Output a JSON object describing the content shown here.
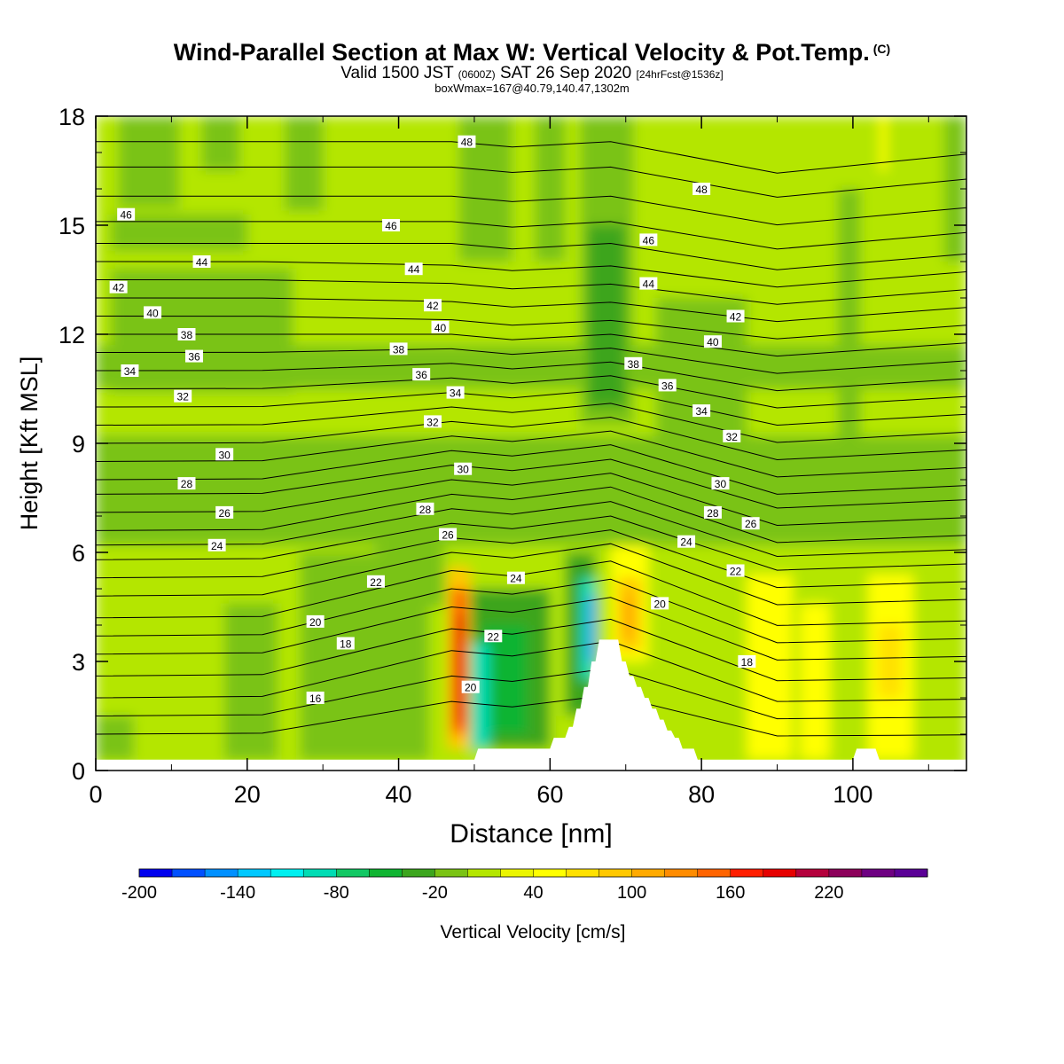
{
  "title": {
    "main": "Wind-Parallel Section at Max W: Vertical Velocity & Pot.Temp.",
    "copyright": "(C)",
    "valid_prefix": "Valid 1500 JST",
    "valid_utc": "(0600Z)",
    "valid_date": "SAT 26 Sep 2020",
    "forecast": "[24hrFcst@1536z]",
    "box": "boxWmax=167@40.79,140.47,1302m"
  },
  "chart_data": {
    "type": "heatmap",
    "xlabel": "Distance [nm]",
    "ylabel": "Height [Kft MSL]",
    "xlim": [
      0,
      115
    ],
    "ylim": [
      0,
      18
    ],
    "x_ticks": [
      0,
      20,
      40,
      60,
      80,
      100
    ],
    "y_ticks": [
      0,
      3,
      6,
      9,
      12,
      15,
      18
    ],
    "colorbar": {
      "label": "Vertical Velocity [cm/s]",
      "min": -200,
      "max": 280,
      "step": 20,
      "tick_labels": [
        -200,
        -140,
        -80,
        -20,
        40,
        100,
        160,
        220
      ],
      "colors": [
        "#0000ee",
        "#0050ff",
        "#0090ff",
        "#00c8ff",
        "#00f0f0",
        "#00dcb4",
        "#12c864",
        "#10b432",
        "#3ca51e",
        "#7ac314",
        "#b4e600",
        "#ebf500",
        "#ffff00",
        "#ffe100",
        "#ffc800",
        "#ffaa00",
        "#ff8c00",
        "#ff6400",
        "#ff1e00",
        "#e60000",
        "#b4003c",
        "#8c005a",
        "#6e0082",
        "#5a0096"
      ]
    },
    "field_cells": [
      {
        "x": [
          0,
          115
        ],
        "y": [
          0,
          18
        ],
        "w": 0
      },
      {
        "x": [
          0,
          115
        ],
        "y": [
          6.2,
          9.2
        ],
        "w": -20
      },
      {
        "x": [
          0,
          115
        ],
        "y": [
          10.5,
          11.7
        ],
        "w": -10
      },
      {
        "x": [
          2,
          26
        ],
        "y": [
          10.4,
          13.8
        ],
        "w": -20
      },
      {
        "x": [
          2,
          20
        ],
        "y": [
          14.3,
          15.3
        ],
        "w": -20
      },
      {
        "x": [
          3,
          11
        ],
        "y": [
          15.5,
          18
        ],
        "w": -20
      },
      {
        "x": [
          14,
          19
        ],
        "y": [
          16.5,
          18
        ],
        "w": -20
      },
      {
        "x": [
          25,
          30
        ],
        "y": [
          15.4,
          18
        ],
        "w": -20
      },
      {
        "x": [
          48,
          55
        ],
        "y": [
          14,
          18
        ],
        "w": -20
      },
      {
        "x": [
          58,
          62
        ],
        "y": [
          14,
          18
        ],
        "w": -20
      },
      {
        "x": [
          64,
          71
        ],
        "y": [
          9.5,
          18
        ],
        "w": -20
      },
      {
        "x": [
          65,
          70
        ],
        "y": [
          10,
          15
        ],
        "w": -40
      },
      {
        "x": [
          74,
          80
        ],
        "y": [
          9,
          13
        ],
        "w": -20
      },
      {
        "x": [
          80,
          86
        ],
        "y": [
          9,
          13
        ],
        "w": -20
      },
      {
        "x": [
          98,
          101
        ],
        "y": [
          9,
          16
        ],
        "w": -20
      },
      {
        "x": [
          112,
          115
        ],
        "y": [
          14,
          18
        ],
        "w": -20
      },
      {
        "x": [
          27,
          44
        ],
        "y": [
          0.3,
          6
        ],
        "w": -20
      },
      {
        "x": [
          17,
          24
        ],
        "y": [
          0.3,
          4.6
        ],
        "w": -20
      },
      {
        "x": [
          0,
          5
        ],
        "y": [
          0.3,
          1.5
        ],
        "w": -20
      },
      {
        "x": [
          37,
          46
        ],
        "y": [
          4.5,
          6.2
        ],
        "w": -20
      },
      {
        "x": [
          86,
          92
        ],
        "y": [
          0.3,
          5.4
        ],
        "w": 40
      },
      {
        "x": [
          93,
          97
        ],
        "y": [
          0.3,
          4.6
        ],
        "w": 40
      },
      {
        "x": [
          102,
          108
        ],
        "y": [
          0.3,
          5.4
        ],
        "w": 40
      },
      {
        "x": [
          103.3,
          106.5
        ],
        "y": [
          2,
          4
        ],
        "w": 60
      },
      {
        "x": [
          103.5,
          104.5
        ],
        "y": [
          16.5,
          18
        ],
        "w": 40
      },
      {
        "x": [
          68,
          73
        ],
        "y": [
          3,
          6.2
        ],
        "w": 40
      },
      {
        "x": [
          69,
          72
        ],
        "y": [
          3.3,
          5.3
        ],
        "w": 80
      },
      {
        "x": [
          69.5,
          71
        ],
        "y": [
          3.7,
          4.8
        ],
        "w": 100
      },
      {
        "x": [
          46.5,
          49.5
        ],
        "y": [
          0.6,
          5.6
        ],
        "w": 80
      },
      {
        "x": [
          47,
          49
        ],
        "y": [
          1,
          5
        ],
        "w": 140
      },
      {
        "x": [
          47.5,
          48.8
        ],
        "y": [
          1.3,
          4.3
        ],
        "w": 180
      },
      {
        "x": [
          49.5,
          60
        ],
        "y": [
          0.6,
          5
        ],
        "w": -40
      },
      {
        "x": [
          51,
          57
        ],
        "y": [
          1,
          4
        ],
        "w": -60
      },
      {
        "x": [
          49.5,
          52
        ],
        "y": [
          0.6,
          3.5
        ],
        "w": -100
      },
      {
        "x": [
          62,
          66
        ],
        "y": [
          1.5,
          6
        ],
        "w": -40
      },
      {
        "x": [
          64,
          66
        ],
        "y": [
          2.5,
          5.3
        ],
        "w": -100
      },
      {
        "x": [
          65,
          66
        ],
        "y": [
          3,
          4.8
        ],
        "w": -160
      }
    ],
    "terrain_top_kft": [
      [
        0,
        0.3
      ],
      [
        50,
        0.3
      ],
      [
        50.5,
        0.6
      ],
      [
        60,
        0.6
      ],
      [
        60.5,
        0.9
      ],
      [
        62,
        0.9
      ],
      [
        62.5,
        1.2
      ],
      [
        63,
        1.2
      ],
      [
        63.5,
        1.7
      ],
      [
        64,
        1.7
      ],
      [
        64.5,
        2.3
      ],
      [
        65,
        2.3
      ],
      [
        65.5,
        3
      ],
      [
        66,
        3
      ],
      [
        66.5,
        3.6
      ],
      [
        69,
        3.6
      ],
      [
        69.5,
        3
      ],
      [
        70,
        3
      ],
      [
        70.5,
        2.6
      ],
      [
        71,
        2.6
      ],
      [
        71.5,
        2.3
      ],
      [
        72,
        2.3
      ],
      [
        72.5,
        2
      ],
      [
        73,
        2
      ],
      [
        73.5,
        1.7
      ],
      [
        74,
        1.7
      ],
      [
        74.5,
        1.4
      ],
      [
        75,
        1.4
      ],
      [
        75.5,
        1.1
      ],
      [
        76,
        1.1
      ],
      [
        76.5,
        0.9
      ],
      [
        77,
        0.9
      ],
      [
        77.5,
        0.6
      ],
      [
        79,
        0.6
      ],
      [
        79.5,
        0.3
      ],
      [
        100,
        0.3
      ],
      [
        100.5,
        0.6
      ],
      [
        103,
        0.6
      ],
      [
        103.5,
        0.3
      ],
      [
        115,
        0.3
      ]
    ],
    "theta_contours": [
      {
        "y_far": 1.0,
        "y_mid": 1.9
      },
      {
        "y_far": 1.5,
        "y_mid": 2.6
      },
      {
        "y_far": 2.0,
        "y_mid": 3.3
      },
      {
        "y_far": 2.6,
        "y_mid": 3.9
      },
      {
        "y_far": 3.2,
        "y_mid": 4.5
      },
      {
        "y_far": 3.7,
        "y_mid": 5.0
      },
      {
        "y_far": 4.2,
        "y_mid": 5.5
      },
      {
        "y_far": 4.8,
        "y_mid": 6.0
      },
      {
        "y_far": 5.3,
        "y_mid": 6.4
      },
      {
        "y_far": 5.8,
        "y_mid": 6.8
      },
      {
        "y_far": 6.2,
        "y_mid": 7.2
      },
      {
        "y_far": 6.6,
        "y_mid": 7.6
      },
      {
        "y_far": 7.1,
        "y_mid": 8.0
      },
      {
        "y_far": 7.6,
        "y_mid": 8.4
      },
      {
        "y_far": 8.0,
        "y_mid": 8.8
      },
      {
        "y_far": 8.5,
        "y_mid": 9.2
      },
      {
        "y_far": 9.0,
        "y_mid": 9.6
      },
      {
        "y_far": 9.5,
        "y_mid": 10.0
      },
      {
        "y_far": 10.0,
        "y_mid": 10.4
      },
      {
        "y_far": 10.5,
        "y_mid": 10.8
      },
      {
        "y_far": 11.0,
        "y_mid": 11.2
      },
      {
        "y_far": 11.5,
        "y_mid": 11.6
      },
      {
        "y_far": 12.0,
        "y_mid": 12.0
      },
      {
        "y_far": 12.5,
        "y_mid": 12.4
      },
      {
        "y_far": 13.0,
        "y_mid": 12.9
      },
      {
        "y_far": 13.5,
        "y_mid": 13.4
      },
      {
        "y_far": 14.0,
        "y_mid": 13.9
      },
      {
        "y_far": 14.5,
        "y_mid": 14.5
      },
      {
        "y_far": 15.1,
        "y_mid": 15.1
      },
      {
        "y_far": 15.8,
        "y_mid": 15.8
      },
      {
        "y_far": 16.6,
        "y_mid": 16.6
      },
      {
        "y_far": 17.3,
        "y_mid": 17.3
      }
    ],
    "contour_labels": [
      {
        "text": "16",
        "x": 29,
        "y": 2.0
      },
      {
        "text": "18",
        "x": 33,
        "y": 3.5
      },
      {
        "text": "18",
        "x": 86,
        "y": 3.0
      },
      {
        "text": "20",
        "x": 29,
        "y": 4.1
      },
      {
        "text": "20",
        "x": 49.5,
        "y": 2.3
      },
      {
        "text": "20",
        "x": 74.5,
        "y": 4.6
      },
      {
        "text": "22",
        "x": 37,
        "y": 5.2
      },
      {
        "text": "22",
        "x": 52.5,
        "y": 3.7
      },
      {
        "text": "22",
        "x": 84.5,
        "y": 5.5
      },
      {
        "text": "24",
        "x": 16,
        "y": 6.2
      },
      {
        "text": "24",
        "x": 55.5,
        "y": 5.3
      },
      {
        "text": "24",
        "x": 78,
        "y": 6.3
      },
      {
        "text": "26",
        "x": 17,
        "y": 7.1
      },
      {
        "text": "26",
        "x": 46.5,
        "y": 6.5
      },
      {
        "text": "26",
        "x": 86.5,
        "y": 6.8
      },
      {
        "text": "28",
        "x": 12,
        "y": 7.9
      },
      {
        "text": "28",
        "x": 43.5,
        "y": 7.2
      },
      {
        "text": "28",
        "x": 81.5,
        "y": 7.1
      },
      {
        "text": "30",
        "x": 17,
        "y": 8.7
      },
      {
        "text": "30",
        "x": 48.5,
        "y": 8.3
      },
      {
        "text": "30",
        "x": 82.5,
        "y": 7.9
      },
      {
        "text": "32",
        "x": 11.5,
        "y": 10.3
      },
      {
        "text": "32",
        "x": 44.5,
        "y": 9.6
      },
      {
        "text": "32",
        "x": 84,
        "y": 9.2
      },
      {
        "text": "34",
        "x": 4.5,
        "y": 11.0
      },
      {
        "text": "34",
        "x": 47.5,
        "y": 10.4
      },
      {
        "text": "34",
        "x": 80,
        "y": 9.9
      },
      {
        "text": "36",
        "x": 13,
        "y": 11.4
      },
      {
        "text": "36",
        "x": 43,
        "y": 10.9
      },
      {
        "text": "36",
        "x": 75.5,
        "y": 10.6
      },
      {
        "text": "38",
        "x": 12,
        "y": 12.0
      },
      {
        "text": "38",
        "x": 40,
        "y": 11.6
      },
      {
        "text": "38",
        "x": 71,
        "y": 11.2
      },
      {
        "text": "40",
        "x": 7.5,
        "y": 12.6
      },
      {
        "text": "40",
        "x": 45.5,
        "y": 12.2
      },
      {
        "text": "40",
        "x": 81.5,
        "y": 11.8
      },
      {
        "text": "42",
        "x": 3,
        "y": 13.3
      },
      {
        "text": "42",
        "x": 44.5,
        "y": 12.8
      },
      {
        "text": "42",
        "x": 84.5,
        "y": 12.5
      },
      {
        "text": "44",
        "x": 14,
        "y": 14.0
      },
      {
        "text": "44",
        "x": 42,
        "y": 13.8
      },
      {
        "text": "44",
        "x": 73,
        "y": 13.4
      },
      {
        "text": "46",
        "x": 4,
        "y": 15.3
      },
      {
        "text": "46",
        "x": 39,
        "y": 15.0
      },
      {
        "text": "46",
        "x": 73,
        "y": 14.6
      },
      {
        "text": "48",
        "x": 49,
        "y": 17.3
      },
      {
        "text": "48",
        "x": 80,
        "y": 16.0
      }
    ]
  }
}
